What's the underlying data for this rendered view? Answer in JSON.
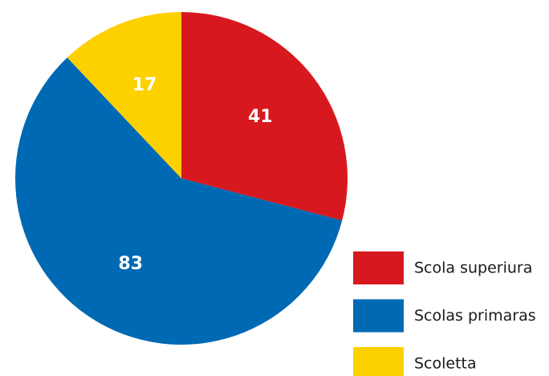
{
  "chart_data": {
    "type": "pie",
    "categories": [
      "Scola superiura",
      "Scolas primaras",
      "Scoletta"
    ],
    "values": [
      41,
      83,
      17
    ],
    "colors": [
      "#d7191f",
      "#0069b4",
      "#fdd000"
    ]
  }
}
